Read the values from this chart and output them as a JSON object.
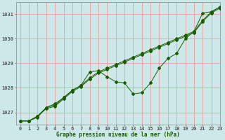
{
  "title": "Graphe pression niveau de la mer (hPa)",
  "background_color": "#cce8e8",
  "grid_color": "#e8a0a0",
  "line_color": "#1a5c00",
  "marker_color": "#1a5c00",
  "xlim": [
    -0.5,
    23
  ],
  "ylim": [
    1026.5,
    1031.5
  ],
  "yticks": [
    1027,
    1028,
    1029,
    1030,
    1031
  ],
  "xticks": [
    0,
    1,
    2,
    3,
    4,
    5,
    6,
    7,
    8,
    9,
    10,
    11,
    12,
    13,
    14,
    15,
    16,
    17,
    18,
    19,
    20,
    21,
    22,
    23
  ],
  "hours": [
    0,
    1,
    2,
    3,
    4,
    5,
    6,
    7,
    8,
    9,
    10,
    11,
    12,
    13,
    14,
    15,
    16,
    17,
    18,
    19,
    20,
    21,
    22,
    23
  ],
  "series_linear1": [
    1026.65,
    1026.65,
    1026.85,
    1027.15,
    1027.25,
    1027.55,
    1027.85,
    1028.05,
    1028.35,
    1028.6,
    1028.75,
    1028.9,
    1029.05,
    1029.2,
    1029.35,
    1029.5,
    1029.65,
    1029.8,
    1029.95,
    1030.1,
    1030.25,
    1030.7,
    1031.05,
    1031.25
  ],
  "series_linear2": [
    1026.65,
    1026.65,
    1026.85,
    1027.2,
    1027.3,
    1027.6,
    1027.9,
    1028.1,
    1028.4,
    1028.65,
    1028.8,
    1028.95,
    1029.1,
    1029.25,
    1029.4,
    1029.55,
    1029.7,
    1029.85,
    1030.0,
    1030.15,
    1030.3,
    1030.75,
    1031.1,
    1031.3
  ],
  "series_wiggly": [
    1026.65,
    1026.65,
    1026.8,
    1027.2,
    1027.35,
    1027.6,
    1027.9,
    1028.1,
    1028.65,
    1028.7,
    1028.45,
    1028.25,
    1028.2,
    1027.75,
    1027.8,
    1028.2,
    1028.8,
    1029.2,
    1029.4,
    1030.0,
    1030.3,
    1031.05,
    1031.1,
    1031.3
  ]
}
